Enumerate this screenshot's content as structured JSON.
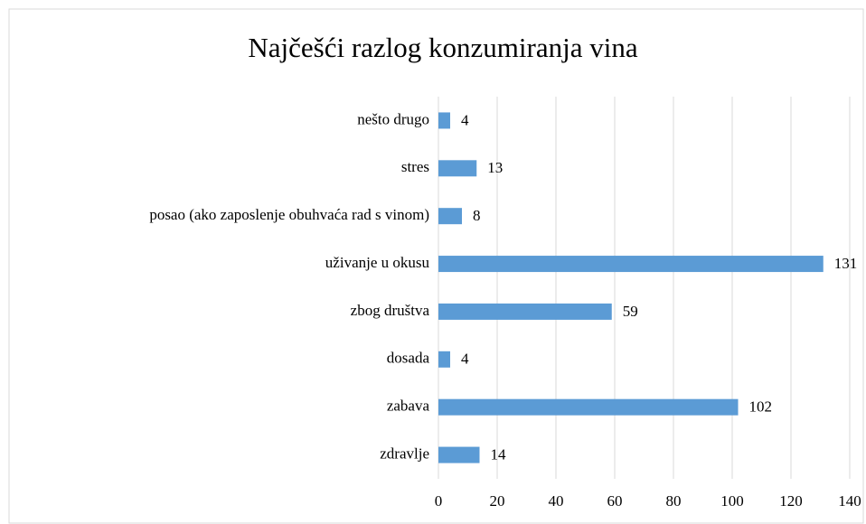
{
  "chart_data": {
    "type": "bar",
    "orientation": "horizontal",
    "title": "Najčešći razlog konzumiranja vina",
    "categories": [
      "nešto drugo",
      "stres",
      "posao (ako zaposlenje obuhvaća rad s vinom)",
      "uživanje u okusu",
      "zbog društva",
      "dosada",
      "zabava",
      "zdravlje"
    ],
    "values": [
      4,
      13,
      8,
      131,
      59,
      4,
      102,
      14
    ],
    "color": "#5b9bd5",
    "xlim": [
      0,
      140
    ],
    "xticks": [
      0,
      20,
      40,
      60,
      80,
      100,
      120,
      140
    ],
    "grid": true
  }
}
